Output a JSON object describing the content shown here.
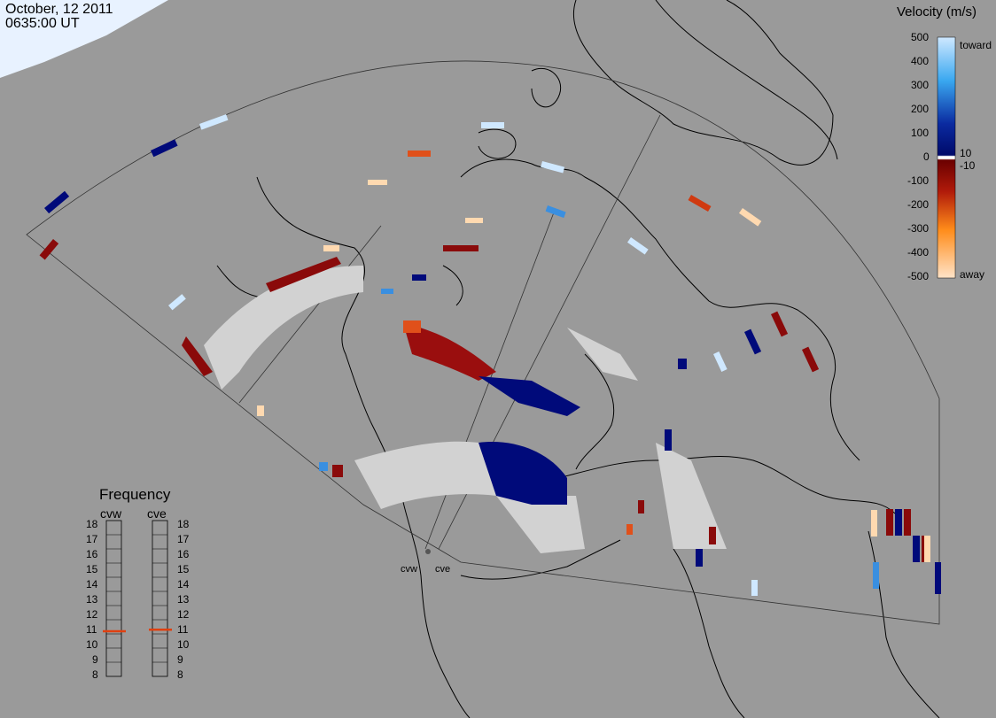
{
  "header": {
    "date": "October, 12 2011",
    "time": "0635:00 UT"
  },
  "colorbar": {
    "title": "Velocity (m/s)",
    "ticks": [
      "500",
      "400",
      "300",
      "200",
      "100",
      "10",
      "0",
      "-10",
      "-100",
      "-200",
      "-300",
      "-400",
      "-500"
    ],
    "toward_label": "toward",
    "away_label": "away",
    "colors": {
      "toward_light": "#cfe8ff",
      "toward_mid": "#3a8fe0",
      "toward_dark": "#0a1a8a",
      "zero": "#ffffff",
      "away_dark": "#8a0a0a",
      "away_mid": "#d03a10",
      "away_orange": "#ff8c1a",
      "away_light": "#ffd9b0",
      "ground_scatter": "#d2d2d2"
    }
  },
  "frequency_panel": {
    "title": "Frequency",
    "radars": [
      "cvw",
      "cve"
    ],
    "scale": [
      "18",
      "17",
      "16",
      "15",
      "14",
      "13",
      "12",
      "11",
      "10",
      "9",
      "8"
    ],
    "cvw_mhz": 10.9,
    "cve_mhz": 11.0
  },
  "radar_sites": [
    "cvw",
    "cve"
  ]
}
